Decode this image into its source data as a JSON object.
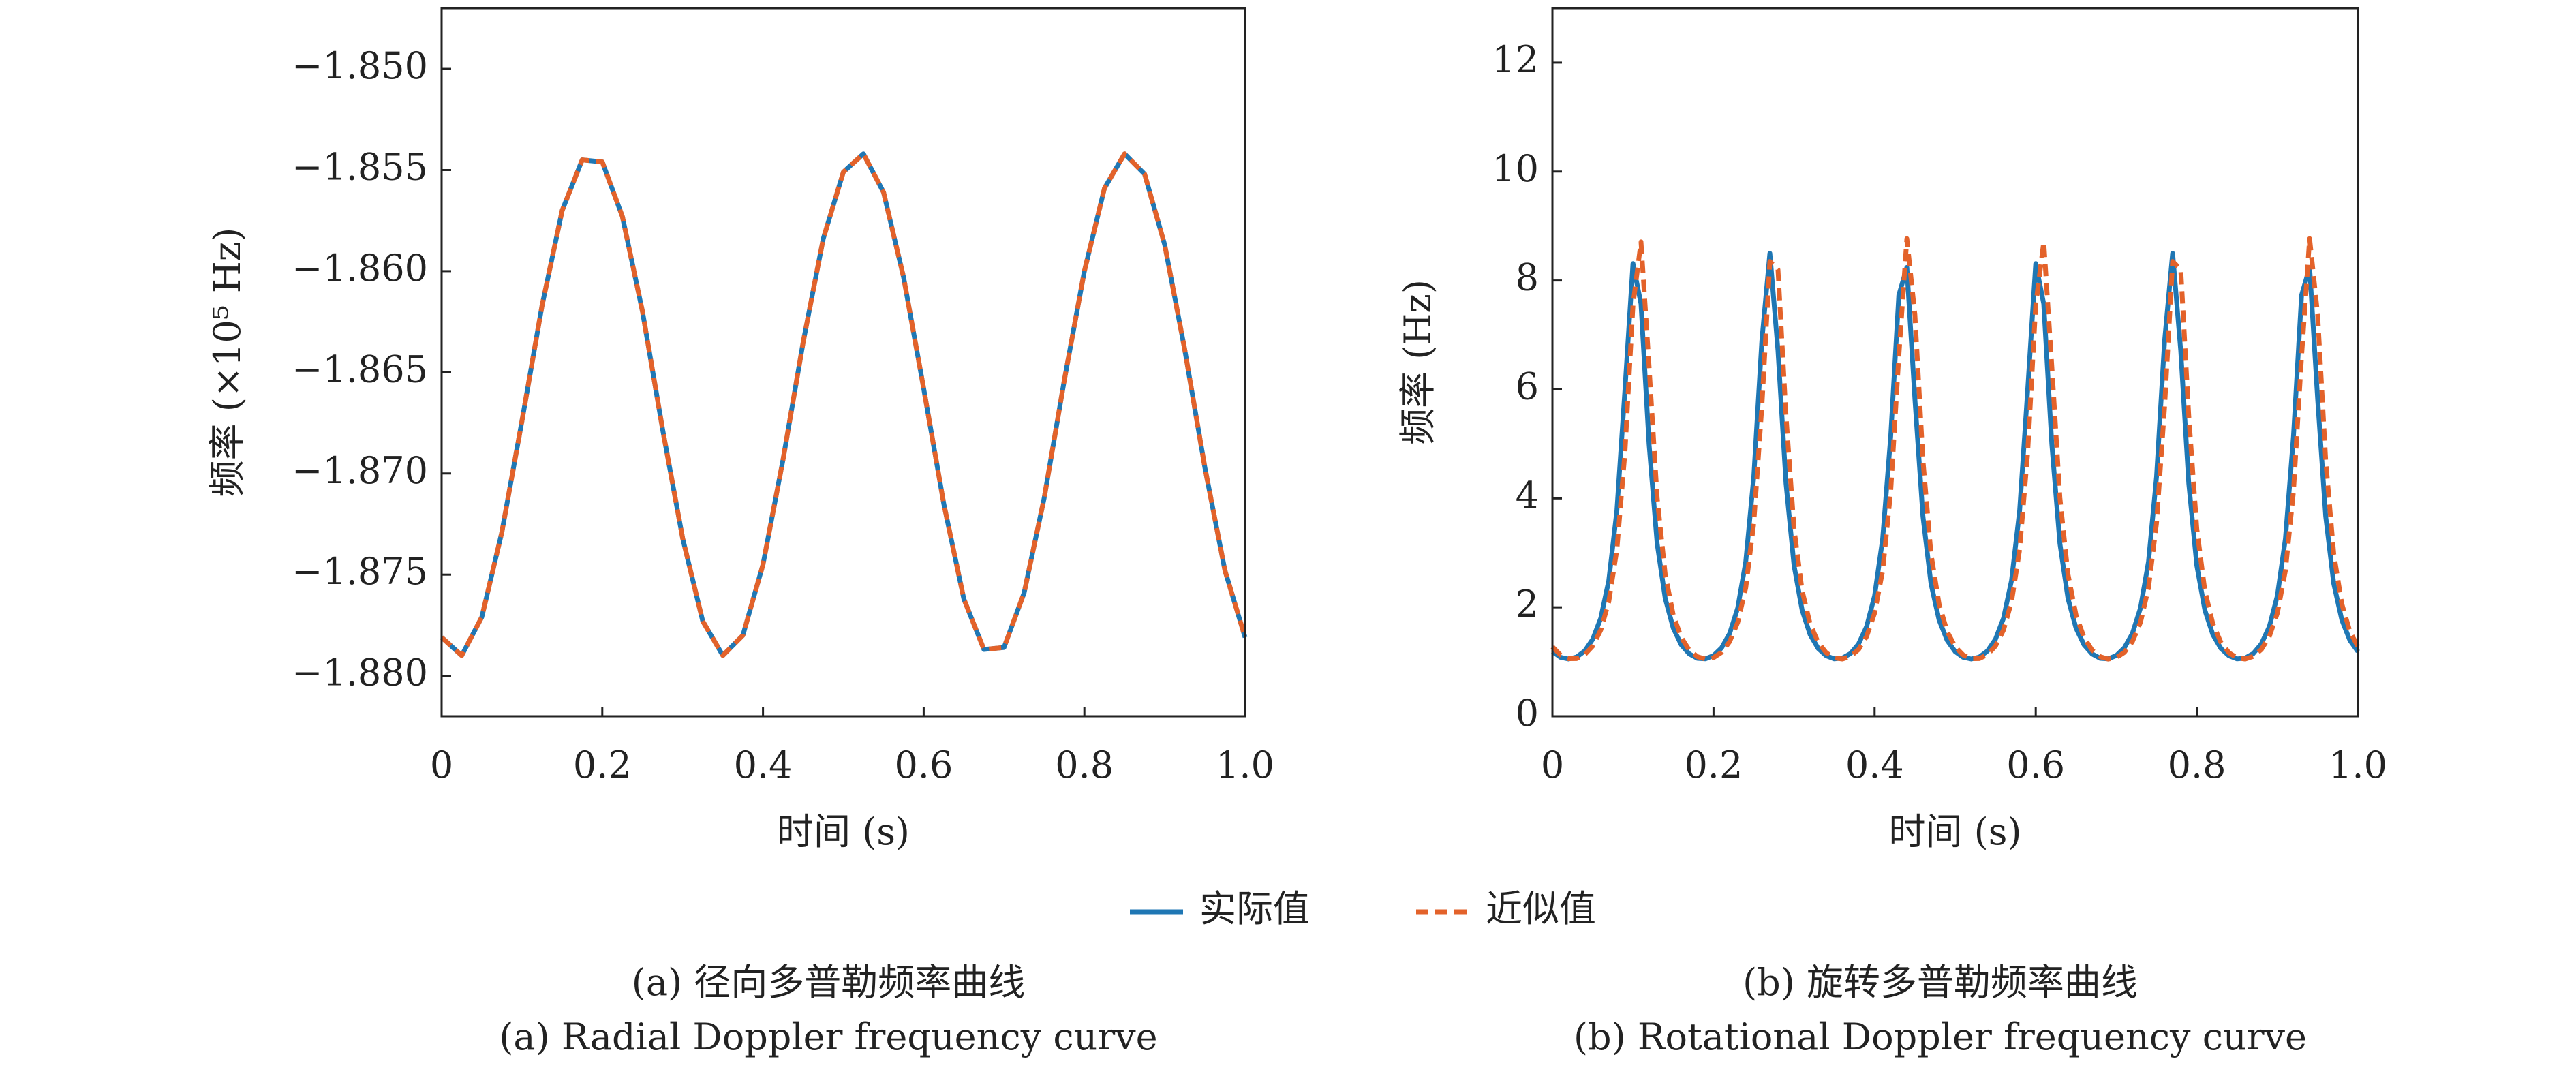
{
  "chart_data": [
    {
      "type": "line",
      "title": "(a) 径向多普勒频率曲线",
      "subtitle": "(a) Radial Doppler frequency curve",
      "xlabel": "时间 (s)",
      "ylabel": "频率 (×10⁵ Hz)",
      "xlim": [
        0,
        1
      ],
      "ylim": [
        -1.882,
        -1.847
      ],
      "xticks": [
        0,
        0.2,
        0.4,
        0.6,
        0.8,
        {
          "value": 1,
          "label": "1.0"
        }
      ],
      "yticks": [
        {
          "value": -1.88,
          "label": "−1.880"
        },
        {
          "value": -1.875,
          "label": "−1.875"
        },
        {
          "value": -1.87,
          "label": "−1.870"
        },
        {
          "value": -1.865,
          "label": "−1.865"
        },
        {
          "value": -1.86,
          "label": "−1.860"
        },
        {
          "value": -1.855,
          "label": "−1.855"
        },
        {
          "value": -1.85,
          "label": "−1.850"
        }
      ],
      "legend": "bottom",
      "x": [
        0,
        0.025,
        0.05,
        0.075,
        0.1,
        0.125,
        0.15,
        0.175,
        0.2,
        0.225,
        0.25,
        0.275,
        0.3,
        0.325,
        0.35,
        0.375,
        0.4,
        0.425,
        0.45,
        0.475,
        0.5,
        0.525,
        0.55,
        0.575,
        0.6,
        0.625,
        0.65,
        0.675,
        0.7,
        0.725,
        0.75,
        0.775,
        0.8,
        0.825,
        0.85,
        0.875,
        0.9,
        0.925,
        0.95,
        0.975,
        1
      ],
      "series": [
        {
          "name": "实际值",
          "color": "#1f77b4",
          "linestyle": "solid",
          "values": [
            -1.8781,
            -1.879,
            -1.8771,
            -1.8729,
            -1.8674,
            -1.8617,
            -1.857,
            -1.8545,
            -1.8546,
            -1.8573,
            -1.862,
            -1.8678,
            -1.8732,
            -1.8773,
            -1.879,
            -1.878,
            -1.8745,
            -1.8693,
            -1.8635,
            -1.8584,
            -1.8551,
            -1.8542,
            -1.8561,
            -1.8603,
            -1.8658,
            -1.8715,
            -1.8762,
            -1.8787,
            -1.8786,
            -1.8759,
            -1.8712,
            -1.8654,
            -1.86,
            -1.8559,
            -1.8542,
            -1.8552,
            -1.8587,
            -1.8639,
            -1.8697,
            -1.8748,
            -1.8781
          ]
        },
        {
          "name": "近似值",
          "color": "#e3622a",
          "linestyle": "dashed",
          "values": [
            -1.8781,
            -1.879,
            -1.8771,
            -1.8729,
            -1.8674,
            -1.8617,
            -1.857,
            -1.8545,
            -1.8546,
            -1.8573,
            -1.862,
            -1.8678,
            -1.8732,
            -1.8773,
            -1.879,
            -1.878,
            -1.8745,
            -1.8693,
            -1.8635,
            -1.8584,
            -1.8551,
            -1.8542,
            -1.8561,
            -1.8603,
            -1.8658,
            -1.8715,
            -1.8762,
            -1.8787,
            -1.8786,
            -1.8759,
            -1.8712,
            -1.8654,
            -1.86,
            -1.8559,
            -1.8542,
            -1.8552,
            -1.8587,
            -1.8639,
            -1.8697,
            -1.8748,
            -1.8781
          ]
        }
      ]
    },
    {
      "type": "line",
      "title": "(b) 旋转多普勒频率曲线",
      "subtitle": "(b) Rotational Doppler frequency curve",
      "xlabel": "时间 (s)",
      "ylabel": "频率 (Hz)",
      "xlim": [
        0,
        1
      ],
      "ylim": [
        0,
        13
      ],
      "xticks": [
        0,
        0.2,
        0.4,
        0.6,
        0.8,
        {
          "value": 1,
          "label": "1.0"
        }
      ],
      "yticks": [
        0,
        2,
        4,
        6,
        8,
        10,
        12
      ],
      "x": [
        0,
        0.01,
        0.02,
        0.03,
        0.04,
        0.05,
        0.06,
        0.07,
        0.08,
        0.09,
        0.1,
        0.11,
        0.12,
        0.13,
        0.14,
        0.15,
        0.16,
        0.17,
        0.18,
        0.19,
        0.2,
        0.21,
        0.22,
        0.23,
        0.24,
        0.25,
        0.26,
        0.27,
        0.28,
        0.29,
        0.3,
        0.31,
        0.32,
        0.33,
        0.34,
        0.35,
        0.36,
        0.37,
        0.38,
        0.39,
        0.4,
        0.41,
        0.42,
        0.43,
        0.44,
        0.45,
        0.46,
        0.47,
        0.48,
        0.49,
        0.5,
        0.51,
        0.52,
        0.53,
        0.54,
        0.55,
        0.56,
        0.57,
        0.58,
        0.59,
        0.6,
        0.61,
        0.62,
        0.63,
        0.64,
        0.65,
        0.66,
        0.67,
        0.68,
        0.69,
        0.7,
        0.71,
        0.72,
        0.73,
        0.74,
        0.75,
        0.76,
        0.77,
        0.78,
        0.79,
        0.8,
        0.81,
        0.82,
        0.83,
        0.84,
        0.85,
        0.86,
        0.87,
        0.88,
        0.89,
        0.9,
        0.91,
        0.92,
        0.93,
        0.94,
        0.95,
        0.96,
        0.97,
        0.98,
        0.99,
        1
      ],
      "series": [
        {
          "name": "实际值",
          "color": "#1f77b4",
          "linestyle": "solid",
          "values": [
            1.187,
            1.082,
            1.051,
            1.086,
            1.197,
            1.412,
            1.798,
            2.493,
            3.778,
            5.99,
            8.31,
            7.57,
            5.0,
            3.17,
            2.166,
            1.619,
            1.311,
            1.143,
            1.064,
            1.055,
            1.114,
            1.255,
            1.518,
            1.986,
            2.838,
            4.4,
            6.89,
            8.5,
            6.71,
            4.27,
            2.766,
            1.948,
            1.496,
            1.243,
            1.108,
            1.054,
            1.067,
            1.15,
            1.326,
            1.645,
            2.213,
            3.26,
            5.14,
            7.73,
            8.24,
            5.82,
            3.67,
            2.435,
            1.767,
            1.394,
            1.187,
            1.082,
            1.051,
            1.086,
            1.197,
            1.412,
            1.798,
            2.493,
            3.778,
            5.99,
            8.31,
            7.57,
            5.0,
            3.17,
            2.166,
            1.619,
            1.311,
            1.143,
            1.064,
            1.055,
            1.114,
            1.255,
            1.518,
            1.986,
            2.838,
            4.4,
            6.89,
            8.5,
            6.71,
            4.27,
            2.766,
            1.948,
            1.496,
            1.243,
            1.108,
            1.054,
            1.067,
            1.15,
            1.326,
            1.645,
            2.213,
            3.26,
            5.14,
            7.73,
            8.24,
            5.82,
            3.67,
            2.435,
            1.767,
            1.394,
            1.187
          ]
        },
        {
          "name": "近似值",
          "color": "#e3622a",
          "linestyle": "dashed",
          "values": [
            1.276,
            1.123,
            1.057,
            1.059,
            1.13,
            1.289,
            1.581,
            2.103,
            3.06,
            4.84,
            7.55,
            8.71,
            6.43,
            4.01,
            2.609,
            1.859,
            1.445,
            1.214,
            1.093,
            1.05,
            1.075,
            1.172,
            1.368,
            1.723,
            2.36,
            3.55,
            5.68,
            8.35,
            8.2,
            5.51,
            3.44,
            2.306,
            1.693,
            1.353,
            1.164,
            1.071,
            1.051,
            1.098,
            1.225,
            1.464,
            1.894,
            2.672,
            4.13,
            6.61,
            8.77,
            7.37,
            4.7,
            2.981,
            2.059,
            1.557,
            1.276,
            1.123,
            1.057,
            1.059,
            1.13,
            1.289,
            1.581,
            2.103,
            3.06,
            4.84,
            7.55,
            8.71,
            6.43,
            4.01,
            2.609,
            1.859,
            1.445,
            1.214,
            1.093,
            1.05,
            1.075,
            1.172,
            1.368,
            1.723,
            2.36,
            3.55,
            5.68,
            8.35,
            8.2,
            5.51,
            3.44,
            2.306,
            1.693,
            1.353,
            1.164,
            1.071,
            1.051,
            1.098,
            1.225,
            1.464,
            1.894,
            2.672,
            4.13,
            6.61,
            8.77,
            7.37,
            4.7,
            2.981,
            2.059,
            1.557,
            1.276
          ]
        }
      ]
    }
  ]
}
